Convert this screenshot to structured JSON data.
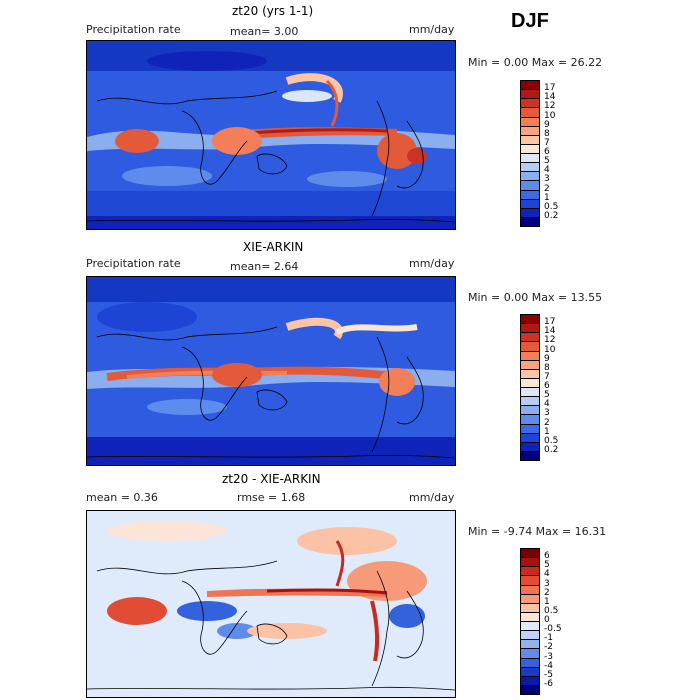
{
  "season": "DJF",
  "panels": [
    {
      "title": "zt20 (yrs 1-1)",
      "left_label": "Precipitation rate",
      "mid_label": "mean=   3.00",
      "units": "mm/day",
      "minmax": "Min =   0.00 Max =  26.22",
      "colorbar": {
        "labels": [
          "17",
          "14",
          "12",
          "10",
          "9",
          "8",
          "7",
          "6",
          "5",
          "4",
          "3",
          "2",
          "1",
          "0.5",
          "0.2"
        ],
        "colors": [
          "#8b0000",
          "#b01a14",
          "#cc3322",
          "#e35a3a",
          "#f27f5a",
          "#f8a27e",
          "#fbc5a6",
          "#fde6d2",
          "#dbe6f6",
          "#b6cdf2",
          "#8aaeee",
          "#5e8cec",
          "#3a6ae6",
          "#1e44d6",
          "#0f23b8",
          "#02007e"
        ]
      }
    },
    {
      "title": "XIE-ARKIN",
      "left_label": "Precipitation rate",
      "mid_label": "mean=   2.64",
      "units": "mm/day",
      "minmax": "Min =   0.00 Max =  13.55",
      "colorbar": {
        "labels": [
          "17",
          "14",
          "12",
          "10",
          "9",
          "8",
          "7",
          "6",
          "5",
          "4",
          "3",
          "2",
          "1",
          "0.5",
          "0.2"
        ],
        "colors": [
          "#8b0000",
          "#b01a14",
          "#cc3322",
          "#e35a3a",
          "#f27f5a",
          "#f8a27e",
          "#fbc5a6",
          "#fde6d2",
          "#dbe6f6",
          "#b6cdf2",
          "#8aaeee",
          "#5e8cec",
          "#3a6ae6",
          "#1e44d6",
          "#0f23b8",
          "#02007e"
        ]
      }
    },
    {
      "title": "zt20 - XIE-ARKIN",
      "left_label": "mean =   0.36",
      "mid_label": "rmse =   1.68",
      "units": "mm/day",
      "minmax": "Min =  -9.74 Max =  16.31",
      "colorbar": {
        "labels": [
          "6",
          "5",
          "4",
          "3",
          "2",
          "1",
          "0.5",
          "0",
          "-0.5",
          "-1",
          "-2",
          "-3",
          "-4",
          "-5",
          "-6"
        ],
        "colors": [
          "#7a0000",
          "#a8120e",
          "#c92a1e",
          "#e04c34",
          "#ef7454",
          "#f69a7a",
          "#fbc2a6",
          "#fde4d6",
          "#dfeafb",
          "#bcd3f6",
          "#90b4f0",
          "#5f8ce9",
          "#3462dd",
          "#1a3ac8",
          "#0b1aa6",
          "#00007a"
        ]
      }
    }
  ]
}
